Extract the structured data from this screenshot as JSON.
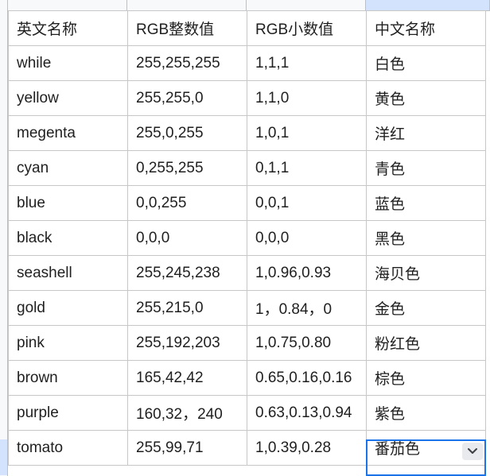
{
  "table": {
    "header": [
      "英文名称",
      "RGB整数值",
      "RGB小数值",
      "中文名称"
    ],
    "rows": [
      [
        "while",
        "255,255,255",
        "1,1,1",
        "白色"
      ],
      [
        "yellow",
        "255,255,0",
        "1,1,0",
        "黄色"
      ],
      [
        "megenta",
        "255,0,255",
        "1,0,1",
        "洋红"
      ],
      [
        "cyan",
        "0,255,255",
        "0,1,1",
        "青色"
      ],
      [
        "blue",
        "0,0,255",
        "0,0,1",
        "蓝色"
      ],
      [
        "black",
        "0,0,0",
        "0,0,0",
        "黑色"
      ],
      [
        "seashell",
        "255,245,238",
        "1,0.96,0.93",
        "海贝色"
      ],
      [
        "gold",
        "255,215,0",
        "1，0.84，0",
        "金色"
      ],
      [
        "pink",
        "255,192,203",
        "1,0.75,0.80",
        "粉红色"
      ],
      [
        "brown",
        "165,42,42",
        "0.65,0.16,0.16",
        "棕色"
      ],
      [
        "purple",
        "160,32，240",
        "0.63,0.13,0.94",
        "紫色"
      ],
      [
        "tomato",
        "255,99,71",
        "1,0.39,0.28",
        "番茄色"
      ]
    ]
  },
  "active_cell": {
    "icon": "chevron-down-icon"
  },
  "colors": {
    "selection_border": "#1a73e8",
    "header_highlight": "#d3e3fd",
    "grid_line": "#c7c7c7"
  }
}
